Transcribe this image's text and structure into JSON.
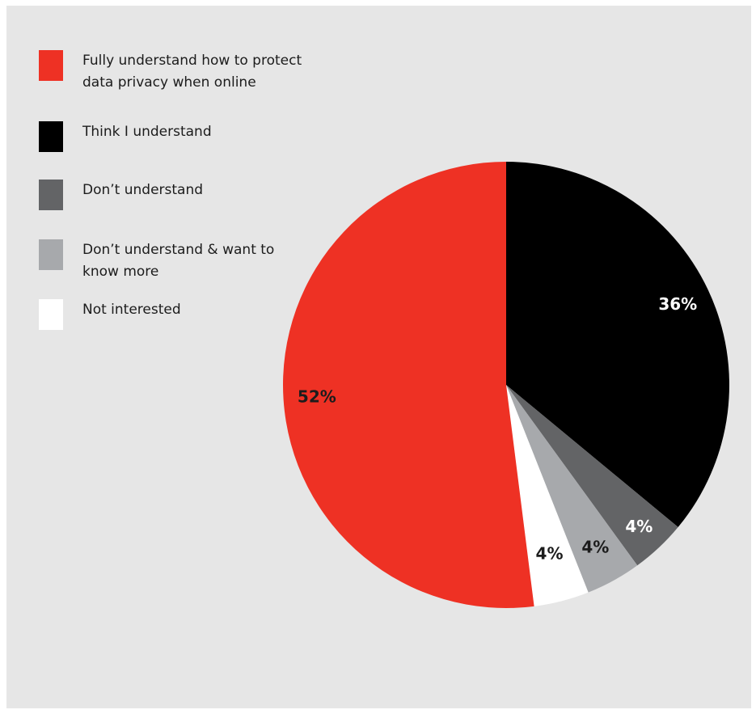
{
  "chart_data": {
    "type": "pie",
    "categories": [
      "Fully understand how to protect data privacy when online",
      "Think I understand",
      "Don’t understand",
      "Don’t understand & want to know more",
      "Not interested"
    ],
    "values": [
      52,
      36,
      4,
      4,
      4
    ],
    "labels": [
      "52%",
      "36%",
      "4%",
      "4%",
      "4%"
    ],
    "colors": [
      "#ee3124",
      "#000000",
      "#636466",
      "#a7a9ac",
      "#ffffff"
    ],
    "label_colors": [
      "#1c1c1c",
      "#ffffff",
      "#ffffff",
      "#1c1c1c",
      "#1c1c1c"
    ],
    "legend_position": "top-left",
    "start_angle": "12 o'clock",
    "direction": "clockwise",
    "slice_order": [
      "Think I understand",
      "Don’t understand",
      "Don’t understand & want to know more",
      "Not interested",
      "Fully understand how to protect data privacy when online"
    ]
  },
  "legend": {
    "items": [
      {
        "label": "Fully understand how to protect data privacy when online",
        "color": "#ee3124"
      },
      {
        "label": "Think I understand",
        "color": "#000000"
      },
      {
        "label": "Don’t understand",
        "color": "#636466"
      },
      {
        "label": "Don’t understand & want to know more",
        "color": "#a7a9ac"
      },
      {
        "label": "Not interested",
        "color": "#ffffff"
      }
    ]
  }
}
